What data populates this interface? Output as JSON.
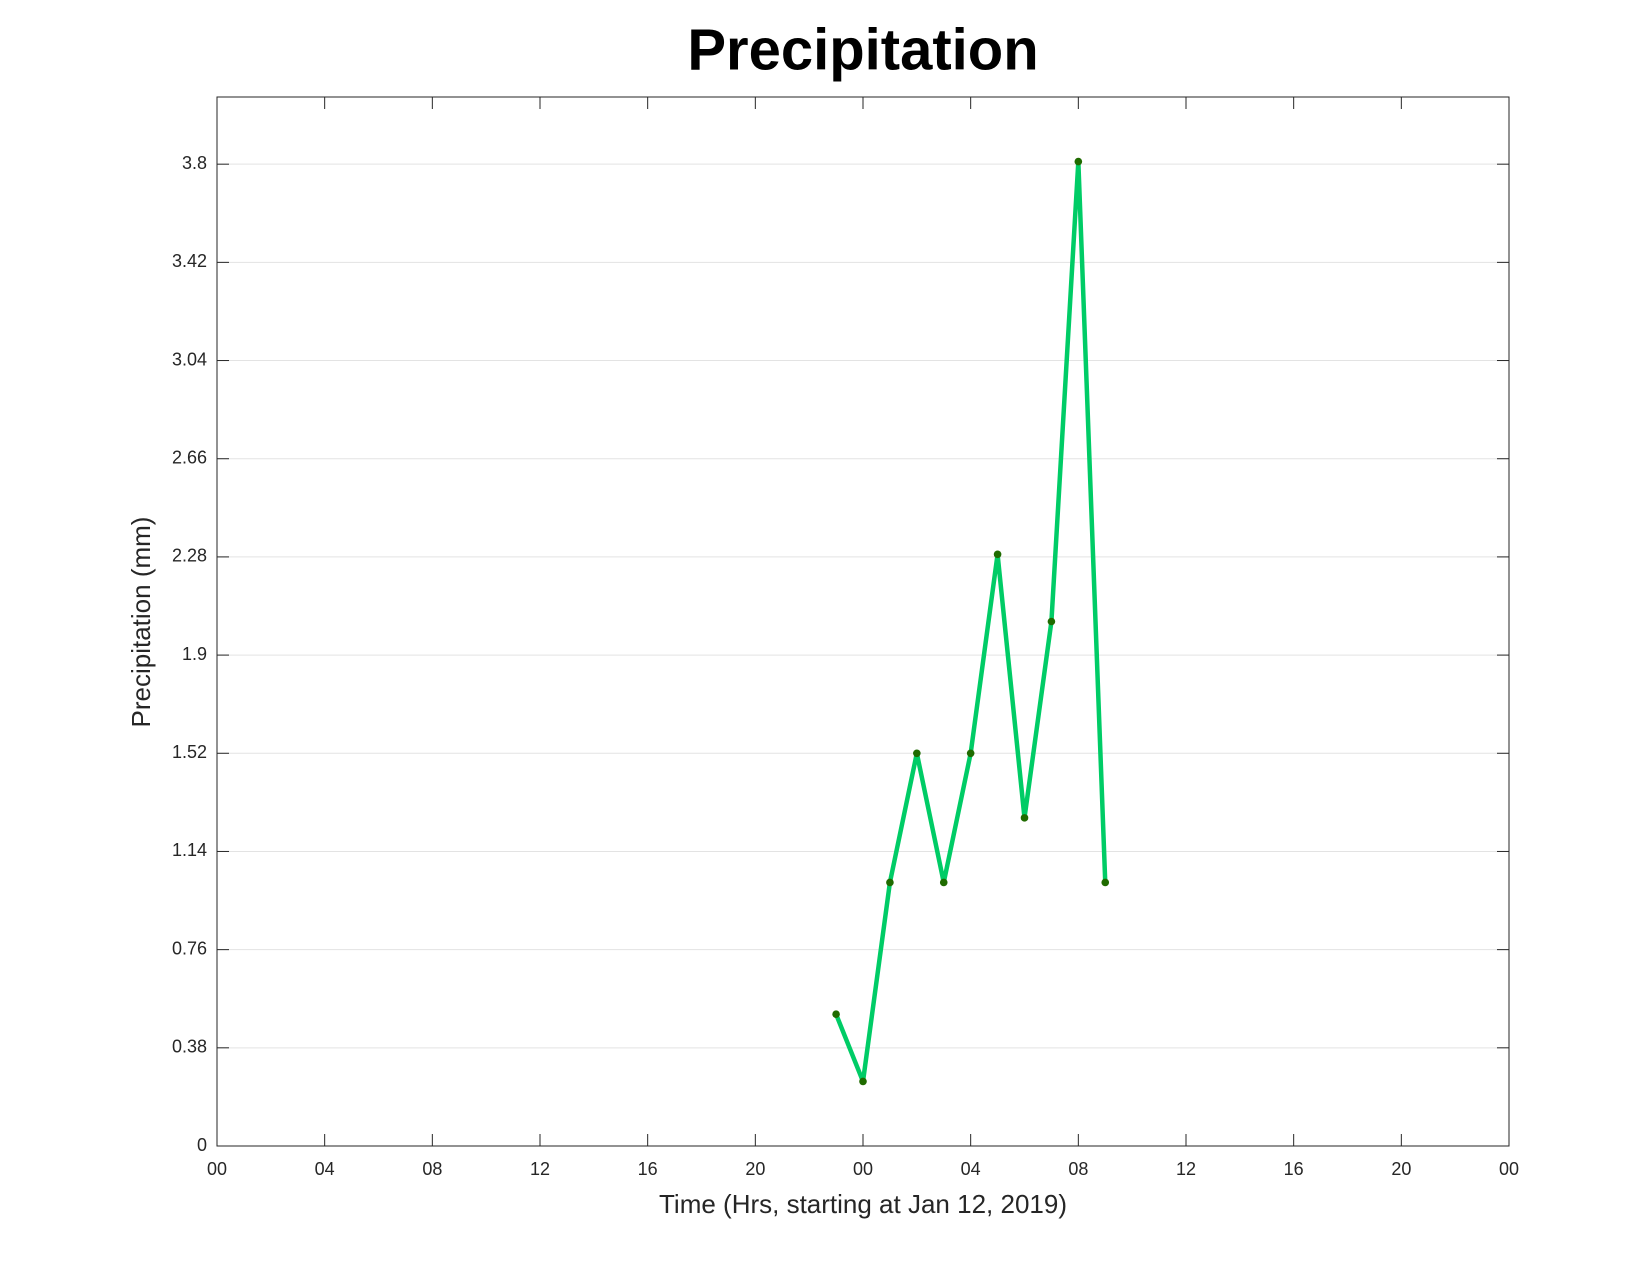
{
  "chart_data": {
    "type": "line",
    "title": "Precipitation",
    "xlabel": "Time (Hrs, starting at Jan 12, 2019)",
    "ylabel": "Precipitation (mm)",
    "x": [
      23,
      24,
      25,
      26,
      27,
      28,
      29,
      30,
      31,
      32,
      33
    ],
    "series": [
      {
        "name": "Precipitation",
        "color": "#00cc66",
        "marker_color": "#1f6b00",
        "values": [
          0.51,
          0.25,
          1.02,
          1.52,
          1.02,
          1.52,
          2.29,
          1.27,
          2.03,
          3.81,
          1.02
        ]
      }
    ],
    "xlim": [
      0,
      48
    ],
    "xticks": [
      {
        "value": 0,
        "label": "00"
      },
      {
        "value": 4,
        "label": "04"
      },
      {
        "value": 8,
        "label": "08"
      },
      {
        "value": 12,
        "label": "12"
      },
      {
        "value": 16,
        "label": "16"
      },
      {
        "value": 20,
        "label": "20"
      },
      {
        "value": 24,
        "label": "00"
      },
      {
        "value": 28,
        "label": "04"
      },
      {
        "value": 32,
        "label": "08"
      },
      {
        "value": 36,
        "label": "12"
      },
      {
        "value": 40,
        "label": "16"
      },
      {
        "value": 44,
        "label": "20"
      },
      {
        "value": 48,
        "label": "00"
      }
    ],
    "ylim": [
      0,
      4.06
    ],
    "yticks": [
      0,
      0.38,
      0.76,
      1.14,
      1.52,
      1.9,
      2.28,
      2.66,
      3.04,
      3.42,
      3.8
    ],
    "grid": true
  }
}
